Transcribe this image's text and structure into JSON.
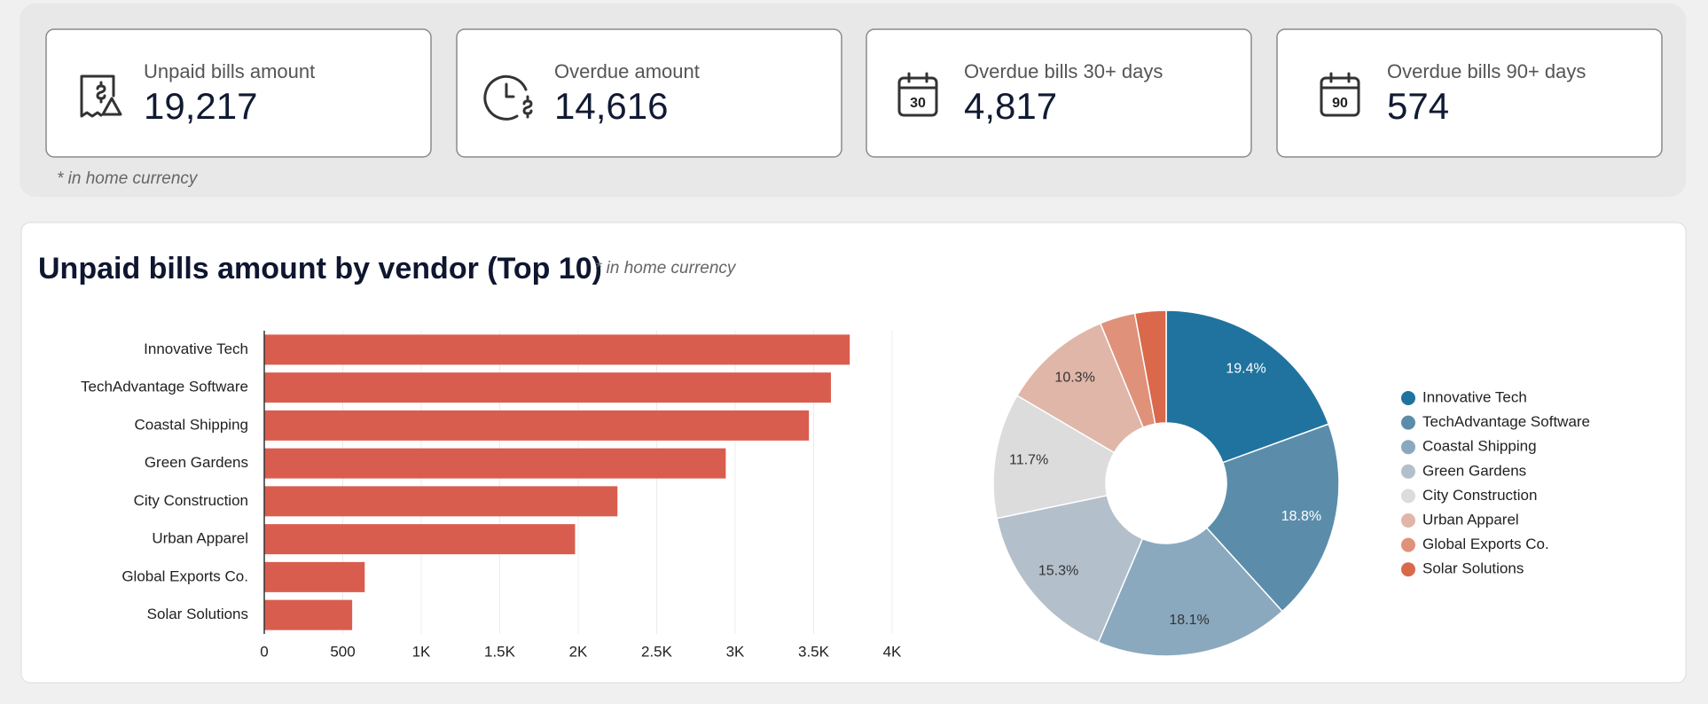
{
  "kpis": [
    {
      "label": "Unpaid bills amount",
      "value": "19,217"
    },
    {
      "label": "Overdue amount",
      "value": "14,616"
    },
    {
      "label": "Overdue bills 30+ days",
      "value": "4,817",
      "icon_text": "30"
    },
    {
      "label": "Overdue bills 90+ days",
      "value": "574",
      "icon_text": "90"
    }
  ],
  "kpi_note": "* in home currency",
  "chart_data": [
    {
      "type": "bar",
      "orientation": "horizontal",
      "title": "Unpaid bills amount by vendor (Top 10)",
      "subtitle": "* in home currency",
      "categories": [
        "Innovative Tech",
        "TechAdvantage Software",
        "Coastal Shipping",
        "Green Gardens",
        "City Construction",
        "Urban Apparel",
        "Global Exports Co.",
        "Solar Solutions"
      ],
      "values": [
        3730,
        3610,
        3470,
        2940,
        2250,
        1980,
        640,
        560
      ],
      "color": "#d95d4e",
      "xlim": [
        0,
        4000
      ],
      "xticks": [
        0,
        500,
        {
          "value": 1000,
          "label": "1K"
        },
        {
          "value": 1500,
          "label": "1.5K"
        },
        {
          "value": 2000,
          "label": "2K"
        },
        {
          "value": 2500,
          "label": "2.5K"
        },
        {
          "value": 3000,
          "label": "3K"
        },
        {
          "value": 3500,
          "label": "3.5K"
        },
        {
          "value": 4000,
          "label": "4K"
        }
      ],
      "grid": true
    },
    {
      "type": "pie",
      "donut": true,
      "legend": "right",
      "categories": [
        "Innovative Tech",
        "TechAdvantage Software",
        "Coastal Shipping",
        "Green Gardens",
        "City Construction",
        "Urban Apparel",
        "Global Exports Co.",
        "Solar Solutions"
      ],
      "values": [
        19.4,
        18.8,
        18.1,
        15.3,
        11.7,
        10.3,
        3.3,
        2.9
      ],
      "value_labels": [
        "19.4%",
        "18.8%",
        "18.1%",
        "15.3%",
        "11.7%",
        "10.3%",
        null,
        null
      ],
      "colors": [
        "#20739e",
        "#5b8dab",
        "#8aa9bf",
        "#b3bfcb",
        "#dcdcdc",
        "#e0b6a8",
        "#df917a",
        "#d9694a"
      ]
    }
  ]
}
